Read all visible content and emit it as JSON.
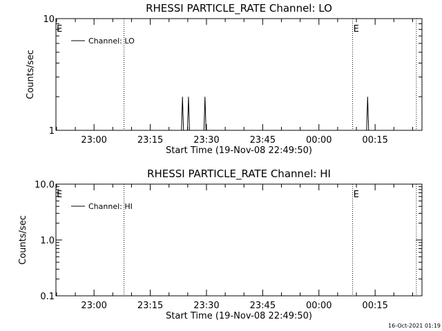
{
  "chart_data": [
    {
      "type": "line",
      "title": "RHESSI PARTICLE_RATE Channel: LO",
      "xlabel": "Start Time (19-Nov-08 22:49:50)",
      "ylabel": "Counts/sec",
      "y_scale": "log",
      "ylim": [
        1,
        10
      ],
      "y_tick_labels": [
        {
          "value": 1,
          "label": "1"
        },
        {
          "value": 10,
          "label": "10"
        }
      ],
      "x_tick_labels": [
        "23:00",
        "23:15",
        "23:30",
        "23:45",
        "00:00",
        "00:15"
      ],
      "legend": {
        "placement": "top-left",
        "entries": [
          "Channel: LO"
        ]
      },
      "event_markers": [
        {
          "time": "23:08",
          "label": "E"
        },
        {
          "time": "00:09",
          "label": "E"
        },
        {
          "time": "00:26",
          "label": ""
        }
      ],
      "series": [
        {
          "name": "Channel: LO",
          "points": [
            {
              "time": "23:23.6",
              "value": 2
            },
            {
              "time": "23:25.2",
              "value": 2
            },
            {
              "time": "23:29.6",
              "value": 2
            },
            {
              "time": "00:13.0",
              "value": 2
            }
          ]
        }
      ]
    },
    {
      "type": "line",
      "title": "RHESSI PARTICLE_RATE Channel: HI",
      "xlabel": "Start Time (19-Nov-08 22:49:50)",
      "ylabel": "Counts/sec",
      "y_scale": "log",
      "ylim": [
        0.1,
        10
      ],
      "y_tick_labels": [
        {
          "value": 0.1,
          "label": "0.1"
        },
        {
          "value": 1,
          "label": "1.0"
        },
        {
          "value": 10,
          "label": "10.0"
        }
      ],
      "x_tick_labels": [
        "23:00",
        "23:15",
        "23:30",
        "23:45",
        "00:00",
        "00:15"
      ],
      "legend": {
        "placement": "top-left",
        "entries": [
          "Channel: HI"
        ]
      },
      "event_markers": [
        {
          "time": "23:08",
          "label": "E"
        },
        {
          "time": "00:09",
          "label": "E"
        },
        {
          "time": "00:26",
          "label": ""
        }
      ],
      "series": [
        {
          "name": "Channel: HI",
          "points": []
        }
      ]
    }
  ],
  "footer": {
    "timestamp": "16-Oct-2021 01:19"
  }
}
